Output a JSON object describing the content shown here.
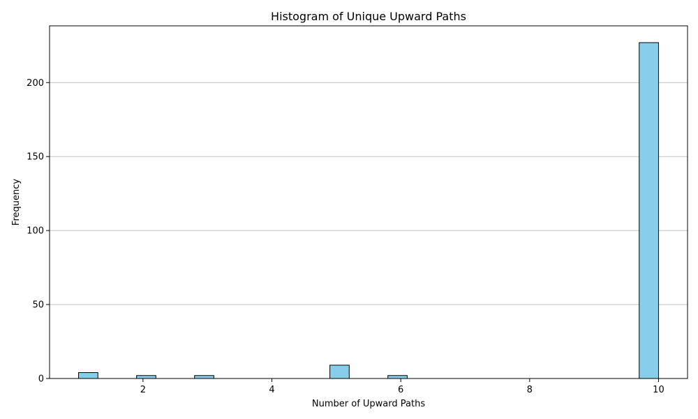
{
  "chart_data": {
    "type": "bar",
    "title": "Histogram of Unique Upward Paths",
    "xlabel": "Number of Upward Paths",
    "ylabel": "Frequency",
    "xlim": [
      0.55,
      10.45
    ],
    "ylim": [
      0,
      238.35
    ],
    "xticks": [
      2,
      4,
      6,
      8,
      10
    ],
    "yticks": [
      0,
      50,
      100,
      150,
      200
    ],
    "grid": "y",
    "bin_width": 0.3,
    "bar_color": "#87CEEB",
    "edge_color": "#000000",
    "grid_color": "#c0c0c0",
    "bins": [
      {
        "start": 1.0,
        "end": 1.3,
        "value": 4
      },
      {
        "start": 1.3,
        "end": 1.6,
        "value": 0
      },
      {
        "start": 1.6,
        "end": 1.9,
        "value": 0
      },
      {
        "start": 1.9,
        "end": 2.2,
        "value": 2
      },
      {
        "start": 2.2,
        "end": 2.5,
        "value": 0
      },
      {
        "start": 2.5,
        "end": 2.8,
        "value": 0
      },
      {
        "start": 2.8,
        "end": 3.1,
        "value": 2
      },
      {
        "start": 3.1,
        "end": 3.4,
        "value": 0
      },
      {
        "start": 3.4,
        "end": 3.7,
        "value": 0
      },
      {
        "start": 3.7,
        "end": 4.0,
        "value": 0
      },
      {
        "start": 4.0,
        "end": 4.3,
        "value": 0
      },
      {
        "start": 4.3,
        "end": 4.6,
        "value": 0
      },
      {
        "start": 4.6,
        "end": 4.9,
        "value": 0
      },
      {
        "start": 4.9,
        "end": 5.2,
        "value": 9
      },
      {
        "start": 5.2,
        "end": 5.5,
        "value": 0
      },
      {
        "start": 5.5,
        "end": 5.8,
        "value": 0
      },
      {
        "start": 5.8,
        "end": 6.1,
        "value": 2
      },
      {
        "start": 6.1,
        "end": 6.4,
        "value": 0
      },
      {
        "start": 6.4,
        "end": 6.7,
        "value": 0
      },
      {
        "start": 6.7,
        "end": 7.0,
        "value": 0
      },
      {
        "start": 7.0,
        "end": 7.3,
        "value": 0
      },
      {
        "start": 7.3,
        "end": 7.6,
        "value": 0
      },
      {
        "start": 7.6,
        "end": 7.9,
        "value": 0
      },
      {
        "start": 7.9,
        "end": 8.2,
        "value": 0
      },
      {
        "start": 8.2,
        "end": 8.5,
        "value": 0
      },
      {
        "start": 8.5,
        "end": 8.8,
        "value": 0
      },
      {
        "start": 8.8,
        "end": 9.1,
        "value": 0
      },
      {
        "start": 9.1,
        "end": 9.4,
        "value": 0
      },
      {
        "start": 9.4,
        "end": 9.7,
        "value": 0
      },
      {
        "start": 9.7,
        "end": 10.0,
        "value": 227
      }
    ]
  }
}
